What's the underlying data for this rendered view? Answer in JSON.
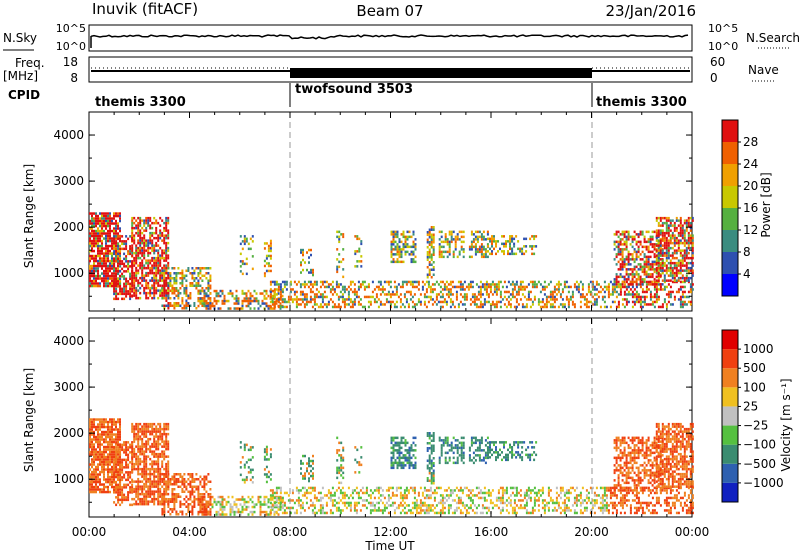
{
  "header": {
    "station": "Inuvik (fitACF)",
    "beam": "Beam 07",
    "date": "23/Jan/2016"
  },
  "panels": {
    "nsky": {
      "label": "N.Sky",
      "right_label": "N.Search",
      "ticks_left": [
        "10^5",
        "10^0"
      ],
      "ticks_right": [
        "10^5",
        "10^0"
      ]
    },
    "freq": {
      "label": "Freq.",
      "unit": "[MHz]",
      "ticks_left": [
        "18",
        "8"
      ],
      "right_label": "Nave",
      "ticks_right": [
        "60",
        "0"
      ]
    },
    "cpid": {
      "label": "CPID",
      "segments": [
        "themis 3300",
        "twofsound 3503",
        "themis 3300"
      ]
    }
  },
  "chart_data": [
    {
      "type": "heatmap",
      "name": "power",
      "ylabel": "Slant Range [km]",
      "yticks": [
        "1000",
        "2000",
        "3000",
        "4000"
      ],
      "colorbar": {
        "label": "Power [dB]",
        "ticks": [
          "4",
          "8",
          "12",
          "16",
          "20",
          "24",
          "28"
        ]
      },
      "colors": [
        "#0000ff",
        "#2e50b0",
        "#3a8c80",
        "#55b040",
        "#c8c800",
        "#f0a000",
        "#f06000",
        "#e01010"
      ],
      "ylim": [
        180,
        4500
      ]
    },
    {
      "type": "heatmap",
      "name": "velocity",
      "ylabel": "Slant Range [km]",
      "yticks": [
        "1000",
        "2000",
        "3000",
        "4000"
      ],
      "colorbar": {
        "label": "Velocity [m s⁻¹]",
        "ticks": [
          "1000",
          "500",
          "100",
          "25",
          "−25",
          "−100",
          "−500",
          "−1000"
        ]
      },
      "colors": [
        "#1020c0",
        "#2e60b0",
        "#3a8c70",
        "#55c040",
        "#c0c0c0",
        "#f0c020",
        "#f08020",
        "#f04010",
        "#e00000"
      ],
      "ylim": [
        180,
        4500
      ]
    }
  ],
  "xaxis": {
    "label": "Time UT",
    "ticks": [
      "00:00",
      "04:00",
      "08:00",
      "12:00",
      "16:00",
      "20:00",
      "00:00"
    ]
  }
}
